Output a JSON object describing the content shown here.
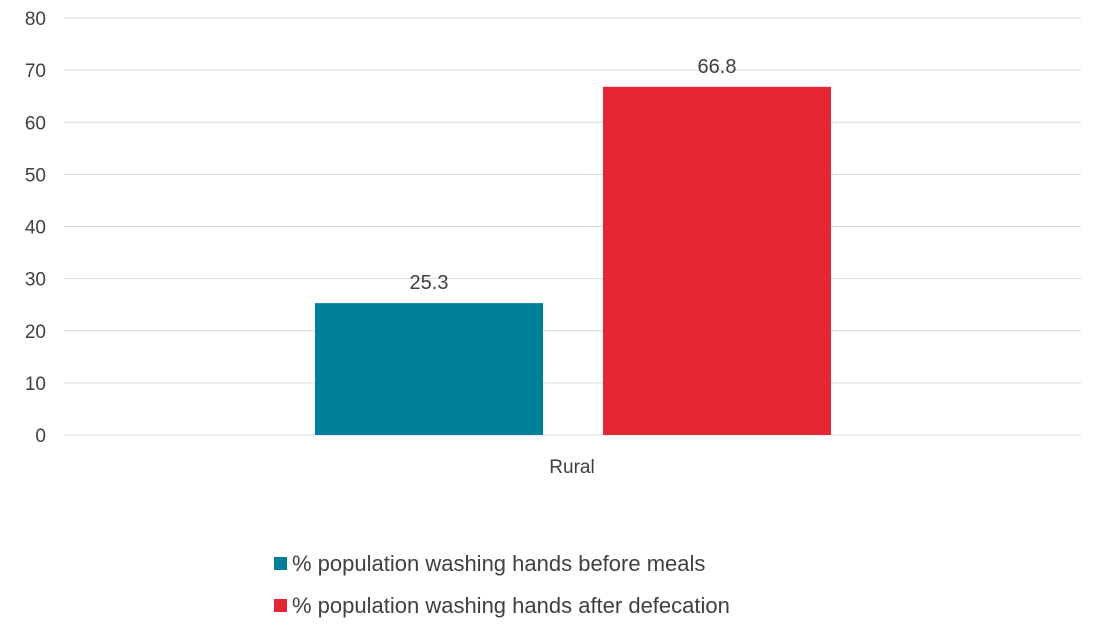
{
  "chart_data": {
    "type": "bar",
    "title": "",
    "xlabel": "",
    "ylabel": "",
    "categories": [
      "Rural"
    ],
    "series": [
      {
        "name": "% population washing hands before meals",
        "values": [
          25.3
        ],
        "color": "#007F99"
      },
      {
        "name": "% population washing hands after defecation",
        "values": [
          66.8
        ],
        "color": "#E52634"
      }
    ],
    "ylim": [
      0,
      80
    ],
    "yticks": [
      "0",
      "10",
      "20",
      "30",
      "40",
      "50",
      "60",
      "70",
      "80"
    ],
    "data_labels": [
      "25.3",
      "66.8"
    ],
    "grid": true,
    "legend_position": "bottom"
  }
}
